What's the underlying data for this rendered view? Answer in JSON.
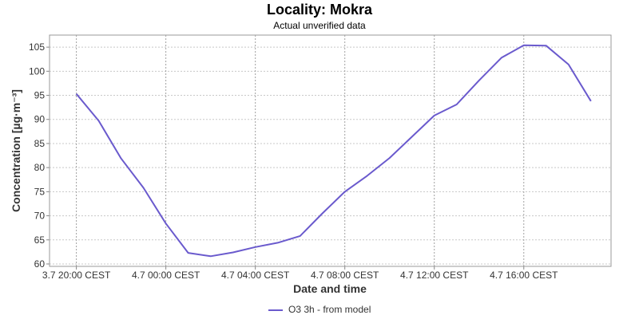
{
  "chart_data": {
    "type": "line",
    "title": "Locality: Mokra",
    "subtitle": "Actual unverified data",
    "xlabel": "Date and time",
    "ylabel": "Concentration [µg·m⁻³]",
    "x_ticks": [
      "3.7 20:00 CEST",
      "4.7 00:00 CEST",
      "4.7 04:00 CEST",
      "4.7 08:00 CEST",
      "4.7 12:00 CEST",
      "4.7 16:00 CEST"
    ],
    "x_hours": [
      0,
      1,
      2,
      3,
      4,
      5,
      6,
      7,
      8,
      9,
      10,
      11,
      12,
      13,
      14,
      15,
      16,
      17,
      18,
      19,
      20,
      21,
      22,
      23
    ],
    "y_ticks": [
      60,
      65,
      70,
      75,
      80,
      85,
      90,
      95,
      100,
      105
    ],
    "ylim": [
      59.5,
      107.5
    ],
    "xlim_hours": [
      -1.2,
      23.9
    ],
    "grid": true,
    "legend_position": "bottom",
    "series": [
      {
        "name": "O3 3h - from model",
        "color": "#6a5acd",
        "values": [
          95.3,
          89.7,
          81.9,
          75.8,
          68.4,
          62.3,
          61.6,
          62.4,
          63.5,
          64.4,
          65.8,
          70.5,
          75.0,
          78.3,
          82.0,
          86.4,
          90.8,
          93.1,
          98.1,
          102.8,
          105.4,
          105.3,
          101.4,
          93.8
        ]
      }
    ]
  }
}
